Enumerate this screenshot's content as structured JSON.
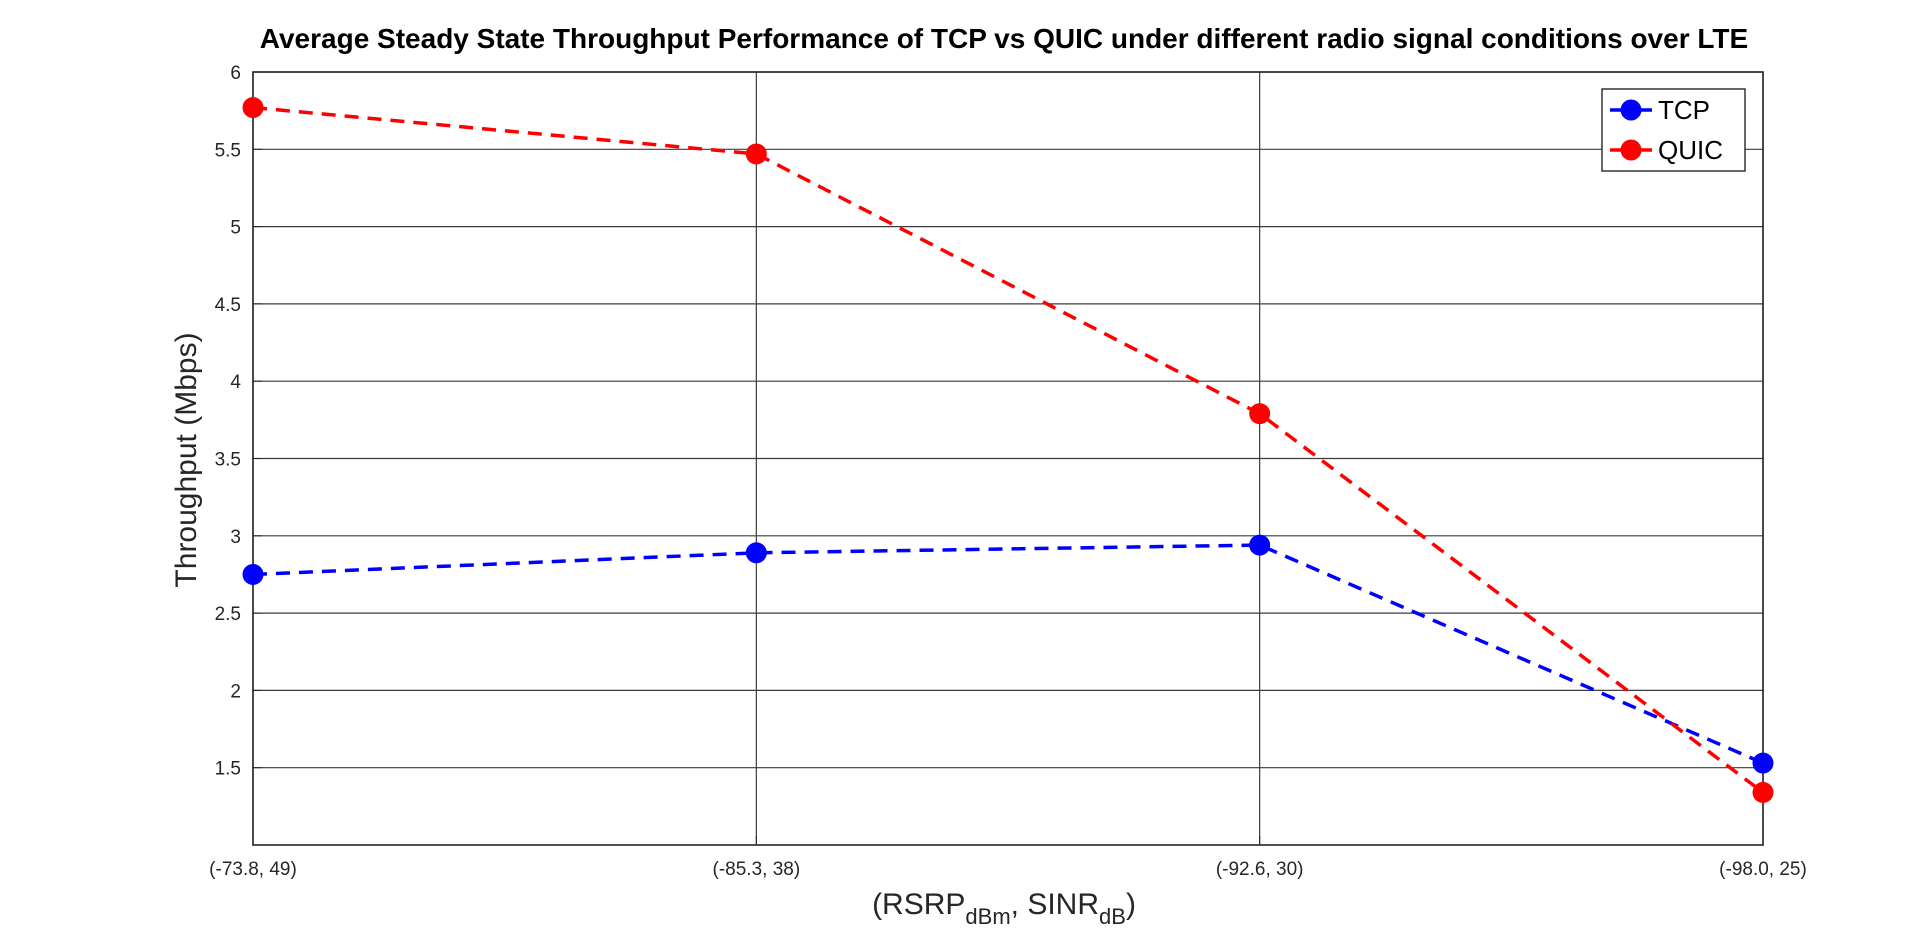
{
  "chart_data": {
    "type": "line",
    "title": "Average Steady State Throughput Performance of TCP vs QUIC under different radio signal conditions over LTE",
    "xlabel_main": "(RSRP",
    "xlabel_sub1": "dBm",
    "xlabel_mid": ", SINR",
    "xlabel_sub2": "dB",
    "xlabel_end": ")",
    "ylabel": "Throughput (Mbps)",
    "categories": [
      "(-73.8, 49)",
      "(-85.3, 38)",
      "(-92.6, 30)",
      "(-98.0, 25)"
    ],
    "ylim": [
      1,
      6
    ],
    "yticks": [
      1.5,
      2,
      2.5,
      3,
      3.5,
      4,
      4.5,
      5,
      5.5,
      6
    ],
    "ytick_labels": [
      "1.5",
      "2",
      "2.5",
      "3",
      "3.5",
      "4",
      "4.5",
      "5",
      "5.5",
      "6"
    ],
    "grid": true,
    "legend_position": "top-right",
    "series": [
      {
        "name": "TCP",
        "color": "#0000ff",
        "values": [
          2.75,
          2.89,
          2.94,
          1.53
        ]
      },
      {
        "name": "QUIC",
        "color": "#ff0000",
        "values": [
          5.77,
          5.47,
          3.79,
          1.34
        ]
      }
    ]
  }
}
